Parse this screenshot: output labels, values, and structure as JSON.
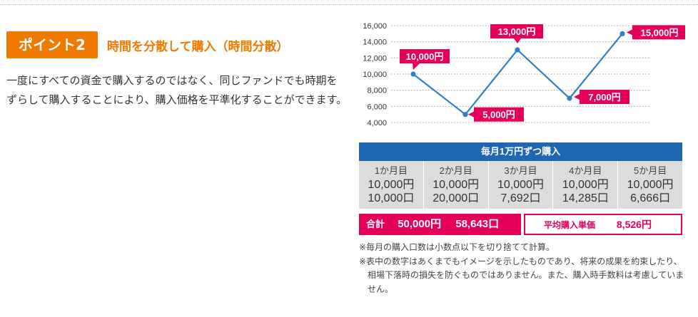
{
  "section": {
    "badge": "ポイント2",
    "title": "時間を分散して購入（時間分散）",
    "body": "一度にすべての資金で購入するのではなく、同じファンドでも時期をずらして購入することにより、購入価格を平準化することができます。"
  },
  "chart_data": {
    "type": "line",
    "x": [
      1,
      2,
      3,
      4,
      5
    ],
    "values": [
      10000,
      5000,
      13000,
      7000,
      15000
    ],
    "data_labels": [
      "10,000円",
      "5,000円",
      "13,000円",
      "7,000円",
      "15,000円"
    ],
    "yticks": [
      4000,
      6000,
      8000,
      10000,
      12000,
      14000,
      16000
    ],
    "ytick_labels": [
      "4,000",
      "6,000",
      "8,000",
      "10,000",
      "12,000",
      "14,000",
      "16,000"
    ],
    "ylim": [
      4000,
      16000
    ],
    "grid": true,
    "colors": {
      "line": "#2f7fc8",
      "label_bg": "#e5005a",
      "grid": "#9a9a9a"
    }
  },
  "table": {
    "header": "毎月1万円ずつ購入",
    "columns": [
      {
        "month": "1か月目",
        "price": "10,000円",
        "units": "10,000口"
      },
      {
        "month": "2か月目",
        "price": "10,000円",
        "units": "20,000口"
      },
      {
        "month": "3か月目",
        "price": "10,000円",
        "units": "7,692口"
      },
      {
        "month": "4か月目",
        "price": "10,000円",
        "units": "14,285口"
      },
      {
        "month": "5か月目",
        "price": "10,000円",
        "units": "6,666口"
      }
    ],
    "total_label": "合計",
    "total_amount": "50,000円",
    "total_units": "58,643口",
    "avg_label": "平均購入単価",
    "avg_value": "8,526円"
  },
  "notes": [
    "※毎月の購入口数は小数点以下を切り捨てて計算。",
    "※表中の数字はあくまでもイメージを示したものであり、将来の成果を約束したり、相場下落時の損失を防ぐものではありません。また、購入時手数料は考慮していません。"
  ],
  "colors": {
    "accent_orange": "#f07a00",
    "title_orange": "#ee7a00",
    "table_blue": "#1f66b3",
    "magenta": "#e5005a"
  }
}
